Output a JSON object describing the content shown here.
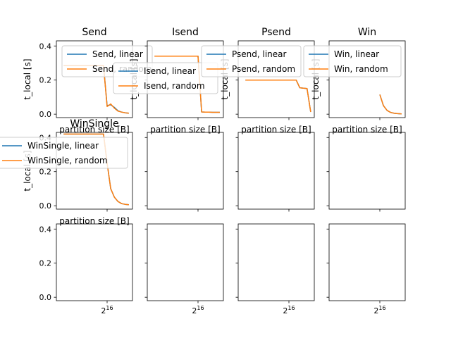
{
  "colors": {
    "linear": "#1f77b4",
    "random": "#ff7f0e"
  },
  "shared": {
    "xlabel": "partition size [B]",
    "ylabel": "t_local [s]",
    "xtick_base": "2",
    "xtick_exp": "16",
    "x_scale": "log2",
    "ylim": [
      -0.02,
      0.43
    ],
    "yticks": [
      "0.0",
      "0.2",
      "0.4"
    ]
  },
  "chart_data": [
    {
      "type": "line",
      "title": "Send",
      "xlabel": "partition size [B]",
      "ylabel": "t_local [s]",
      "legend": "upper-right",
      "series": [
        {
          "name": "Send, linear",
          "x": [
            16,
            32,
            64,
            128,
            256,
            512,
            1024,
            2048,
            4096,
            8192,
            16384,
            32768,
            65536,
            131072,
            262144,
            524288,
            1048576,
            2097152,
            4194304
          ],
          "y": [
            0.285,
            0.285,
            0.285,
            0.285,
            0.285,
            0.285,
            0.285,
            0.285,
            0.285,
            0.285,
            0.285,
            0.285,
            0.05,
            0.055,
            0.04,
            0.02,
            0.012,
            0.008,
            0.006
          ]
        },
        {
          "name": "Send, random",
          "x": [
            16,
            32,
            64,
            128,
            256,
            512,
            1024,
            2048,
            4096,
            8192,
            16384,
            32768,
            65536,
            131072,
            262144,
            524288,
            1048576,
            2097152,
            4194304
          ],
          "y": [
            0.285,
            0.285,
            0.285,
            0.285,
            0.285,
            0.285,
            0.285,
            0.285,
            0.285,
            0.285,
            0.285,
            0.285,
            0.045,
            0.06,
            0.035,
            0.018,
            0.012,
            0.008,
            0.006
          ]
        }
      ]
    },
    {
      "type": "line",
      "title": "Isend",
      "xlabel": "partition size [B]",
      "ylabel": "t_local [s]",
      "legend": "upper-right",
      "series": [
        {
          "name": "Isend, linear",
          "x": [
            16,
            32,
            64,
            128,
            256,
            512,
            1024,
            2048,
            4096,
            8192,
            16384,
            32768,
            65536,
            131072,
            262144,
            524288,
            1048576,
            2097152,
            4194304
          ],
          "y": [
            0.34,
            0.34,
            0.34,
            0.34,
            0.34,
            0.34,
            0.34,
            0.34,
            0.34,
            0.34,
            0.34,
            0.34,
            0.34,
            0.013,
            0.012,
            0.012,
            0.011,
            0.011,
            0.011
          ]
        },
        {
          "name": "Isend, random",
          "x": [
            16,
            32,
            64,
            128,
            256,
            512,
            1024,
            2048,
            4096,
            8192,
            16384,
            32768,
            65536,
            131072,
            262144,
            524288,
            1048576,
            2097152,
            4194304
          ],
          "y": [
            0.34,
            0.34,
            0.34,
            0.34,
            0.34,
            0.34,
            0.34,
            0.34,
            0.34,
            0.34,
            0.34,
            0.34,
            0.34,
            0.013,
            0.012,
            0.012,
            0.011,
            0.011,
            0.011
          ]
        }
      ]
    },
    {
      "type": "line",
      "title": "Psend",
      "xlabel": "partition size [B]",
      "ylabel": "t_local [s]",
      "legend": "upper-right",
      "series": [
        {
          "name": "Psend, linear",
          "x": [
            16,
            32,
            64,
            128,
            256,
            512,
            1024,
            2048,
            4096,
            8192,
            16384,
            32768,
            65536,
            131072,
            262144,
            524288,
            1048576,
            2097152,
            4194304
          ],
          "y": [
            0.2,
            0.2,
            0.2,
            0.2,
            0.2,
            0.2,
            0.2,
            0.2,
            0.2,
            0.2,
            0.2,
            0.2,
            0.2,
            0.2,
            0.2,
            0.155,
            0.152,
            0.15,
            0.013
          ]
        },
        {
          "name": "Psend, random",
          "x": [
            16,
            32,
            64,
            128,
            256,
            512,
            1024,
            2048,
            4096,
            8192,
            16384,
            32768,
            65536,
            131072,
            262144,
            524288,
            1048576,
            2097152,
            4194304
          ],
          "y": [
            0.2,
            0.2,
            0.2,
            0.2,
            0.2,
            0.2,
            0.2,
            0.2,
            0.2,
            0.2,
            0.2,
            0.2,
            0.2,
            0.2,
            0.2,
            0.155,
            0.152,
            0.15,
            0.013
          ]
        }
      ]
    },
    {
      "type": "line",
      "title": "Win",
      "xlabel": "partition size [B]",
      "ylabel": "t_local [s]",
      "legend": "upper-right",
      "series": [
        {
          "name": "Win, linear",
          "x": [
            65536,
            131072,
            262144,
            524288,
            1048576,
            2097152,
            4194304
          ],
          "y": [
            0.115,
            0.05,
            0.022,
            0.01,
            0.005,
            0.003,
            0.002
          ]
        },
        {
          "name": "Win, random",
          "x": [
            65536,
            131072,
            262144,
            524288,
            1048576,
            2097152,
            4194304
          ],
          "y": [
            0.115,
            0.05,
            0.022,
            0.01,
            0.005,
            0.003,
            0.002
          ]
        }
      ]
    },
    {
      "type": "line",
      "title": "WinSingle",
      "xlabel": "partition size [B]",
      "ylabel": "t_local [s]",
      "legend": "upper-right",
      "series": [
        {
          "name": "WinSingle, linear",
          "x": [
            16,
            32,
            64,
            128,
            256,
            512,
            1024,
            2048,
            4096,
            8192,
            16384,
            32768,
            65536,
            131072,
            262144,
            524288,
            1048576,
            2097152,
            4194304
          ],
          "y": [
            0.42,
            0.42,
            0.42,
            0.42,
            0.42,
            0.42,
            0.42,
            0.42,
            0.42,
            0.42,
            0.42,
            0.42,
            0.25,
            0.1,
            0.05,
            0.025,
            0.012,
            0.008,
            0.006
          ]
        },
        {
          "name": "WinSingle, random",
          "x": [
            16,
            32,
            64,
            128,
            256,
            512,
            1024,
            2048,
            4096,
            8192,
            16384,
            32768,
            65536,
            131072,
            262144,
            524288,
            1048576,
            2097152,
            4194304
          ],
          "y": [
            0.42,
            0.42,
            0.42,
            0.42,
            0.42,
            0.42,
            0.42,
            0.42,
            0.42,
            0.42,
            0.42,
            0.42,
            0.25,
            0.1,
            0.05,
            0.025,
            0.012,
            0.008,
            0.006
          ]
        }
      ]
    },
    {
      "type": "line",
      "title": "",
      "series": []
    },
    {
      "type": "line",
      "title": "",
      "series": []
    },
    {
      "type": "line",
      "title": "",
      "series": []
    },
    {
      "type": "line",
      "title": "",
      "series": []
    },
    {
      "type": "line",
      "title": "",
      "series": []
    },
    {
      "type": "line",
      "title": "",
      "series": []
    },
    {
      "type": "line",
      "title": "",
      "series": []
    }
  ]
}
